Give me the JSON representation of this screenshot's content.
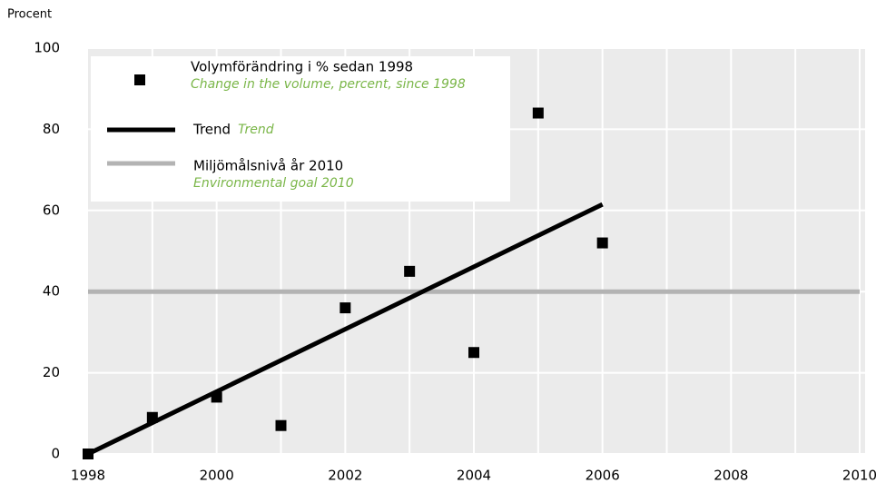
{
  "chart_data": {
    "type": "scatter",
    "y_label": "Procent",
    "xlim": [
      1998,
      2010
    ],
    "ylim": [
      0,
      100
    ],
    "xticks": [
      1998,
      2000,
      2002,
      2004,
      2006,
      2008,
      2010
    ],
    "xgrid": [
      1999,
      2000,
      2001,
      2002,
      2003,
      2004,
      2005,
      2006,
      2007,
      2008,
      2009,
      2010
    ],
    "yticks": [
      0,
      20,
      40,
      60,
      80,
      100
    ],
    "grid": true,
    "series": [
      {
        "name": "Volymförändring i % sedan 1998",
        "name_en": "Change in the volume, percent, since 1998",
        "color": "#000000",
        "kind": "points",
        "x": [
          1998,
          1999,
          2000,
          2001,
          2002,
          2003,
          2004,
          2005,
          2006
        ],
        "values": [
          0,
          9,
          14,
          7,
          36,
          45,
          25,
          84,
          52
        ]
      },
      {
        "name": "Trend",
        "name_en": "Trend",
        "color": "#000000",
        "kind": "line",
        "x": [
          1998,
          2006
        ],
        "values": [
          0,
          61.5
        ]
      },
      {
        "name": "Miljömålsnivå år 2010",
        "name_en": "Environmental goal 2010",
        "color": "#b3b3b3",
        "kind": "line",
        "x": [
          1998,
          2010
        ],
        "values": [
          40,
          40
        ]
      }
    ]
  }
}
